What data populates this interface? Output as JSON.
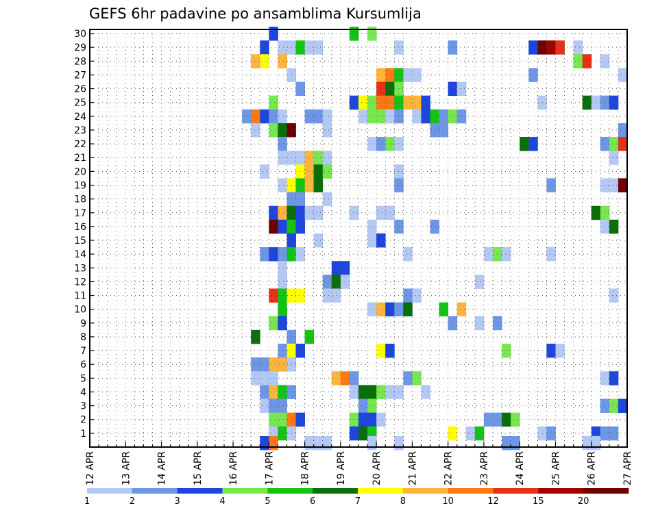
{
  "chart_data": {
    "type": "heatmap",
    "title": "GEFS 6hr padavine po ansamblima Kursumlija",
    "xlabel": "",
    "ylabel": "",
    "x_ticks": [
      "12 APR",
      "13 APR",
      "14 APR",
      "15 APR",
      "16 APR",
      "17 APR",
      "18 APR",
      "19 APR",
      "20 APR",
      "21 APR",
      "22 APR",
      "23 APR",
      "24 APR",
      "25 APR",
      "26 APR",
      "27 APR"
    ],
    "y_ticks": [
      "1",
      "2",
      "3",
      "4",
      "5",
      "6",
      "7",
      "8",
      "9",
      "10",
      "11",
      "12",
      "13",
      "14",
      "15",
      "16",
      "17",
      "18",
      "19",
      "20",
      "21",
      "22",
      "23",
      "24",
      "25",
      "26",
      "27",
      "28",
      "29",
      "30"
    ],
    "xlim": [
      0,
      60
    ],
    "ylim": [
      0,
      30.3
    ],
    "grid": true,
    "legend": "bottom",
    "color_scale": {
      "levels": [
        "1",
        "2",
        "3",
        "4",
        "5",
        "6",
        "7",
        "8",
        "10",
        "12",
        "15",
        "20"
      ],
      "colors": [
        "#b4c8f5",
        "#6e96e6",
        "#1e46dc",
        "#78e650",
        "#14c314",
        "#0a6e0a",
        "#ffff00",
        "#ffb43c",
        "#ff7814",
        "#e63214",
        "#a00000",
        "#6e0000"
      ]
    },
    "cells": [
      [
        20,
        30,
        2
      ],
      [
        29,
        30,
        4
      ],
      [
        31,
        30,
        3
      ],
      [
        19,
        29,
        2
      ],
      [
        21,
        29,
        0
      ],
      [
        22,
        29,
        0
      ],
      [
        23,
        29,
        4
      ],
      [
        24,
        29,
        0
      ],
      [
        25,
        29,
        0
      ],
      [
        34,
        29,
        0
      ],
      [
        40,
        29,
        1
      ],
      [
        49,
        29,
        2
      ],
      [
        50,
        29,
        11
      ],
      [
        51,
        29,
        10
      ],
      [
        52,
        29,
        9
      ],
      [
        54,
        29,
        0
      ],
      [
        18,
        28,
        7
      ],
      [
        19,
        28,
        6
      ],
      [
        21,
        28,
        7
      ],
      [
        54,
        28,
        3
      ],
      [
        55,
        28,
        9
      ],
      [
        57,
        28,
        0
      ],
      [
        22,
        27,
        0
      ],
      [
        32,
        27,
        7
      ],
      [
        33,
        27,
        8
      ],
      [
        34,
        27,
        4
      ],
      [
        35,
        27,
        0
      ],
      [
        36,
        27,
        0
      ],
      [
        49,
        27,
        1
      ],
      [
        59,
        27,
        0
      ],
      [
        23,
        26,
        1
      ],
      [
        32,
        26,
        9
      ],
      [
        33,
        26,
        5
      ],
      [
        34,
        26,
        3
      ],
      [
        40,
        26,
        2
      ],
      [
        41,
        26,
        0
      ],
      [
        20,
        25,
        3
      ],
      [
        29,
        25,
        2
      ],
      [
        30,
        25,
        6
      ],
      [
        31,
        25,
        3
      ],
      [
        32,
        25,
        8
      ],
      [
        33,
        25,
        8
      ],
      [
        34,
        25,
        4
      ],
      [
        35,
        25,
        7
      ],
      [
        36,
        25,
        7
      ],
      [
        37,
        25,
        2
      ],
      [
        50,
        25,
        0
      ],
      [
        55,
        25,
        5
      ],
      [
        56,
        25,
        0
      ],
      [
        57,
        25,
        1
      ],
      [
        58,
        25,
        2
      ],
      [
        17,
        24,
        1
      ],
      [
        18,
        24,
        8
      ],
      [
        19,
        24,
        2
      ],
      [
        20,
        24,
        1
      ],
      [
        21,
        24,
        0
      ],
      [
        24,
        24,
        1
      ],
      [
        25,
        24,
        1
      ],
      [
        26,
        24,
        0
      ],
      [
        30,
        24,
        0
      ],
      [
        31,
        24,
        3
      ],
      [
        32,
        24,
        3
      ],
      [
        33,
        24,
        0
      ],
      [
        34,
        24,
        1
      ],
      [
        36,
        24,
        0
      ],
      [
        37,
        24,
        2
      ],
      [
        38,
        24,
        4
      ],
      [
        39,
        24,
        1
      ],
      [
        40,
        24,
        3
      ],
      [
        41,
        24,
        1
      ],
      [
        18,
        23,
        0
      ],
      [
        20,
        23,
        3
      ],
      [
        21,
        23,
        5
      ],
      [
        22,
        23,
        11
      ],
      [
        26,
        23,
        0
      ],
      [
        38,
        23,
        1
      ],
      [
        39,
        23,
        1
      ],
      [
        59,
        23,
        1
      ],
      [
        21,
        22,
        1
      ],
      [
        31,
        22,
        0
      ],
      [
        32,
        22,
        1
      ],
      [
        33,
        22,
        3
      ],
      [
        34,
        22,
        0
      ],
      [
        48,
        22,
        5
      ],
      [
        49,
        22,
        2
      ],
      [
        57,
        22,
        1
      ],
      [
        58,
        22,
        3
      ],
      [
        59,
        22,
        9
      ],
      [
        21,
        21,
        0
      ],
      [
        22,
        21,
        0
      ],
      [
        23,
        21,
        0
      ],
      [
        24,
        21,
        7
      ],
      [
        25,
        21,
        3
      ],
      [
        26,
        21,
        0
      ],
      [
        58,
        21,
        0
      ],
      [
        19,
        20,
        0
      ],
      [
        23,
        20,
        6
      ],
      [
        24,
        20,
        7
      ],
      [
        25,
        20,
        5
      ],
      [
        26,
        20,
        3
      ],
      [
        34,
        20,
        0
      ],
      [
        21,
        19,
        0
      ],
      [
        22,
        19,
        6
      ],
      [
        23,
        19,
        4
      ],
      [
        24,
        19,
        7
      ],
      [
        25,
        19,
        5
      ],
      [
        34,
        19,
        1
      ],
      [
        51,
        19,
        1
      ],
      [
        57,
        19,
        0
      ],
      [
        58,
        19,
        0
      ],
      [
        59,
        19,
        11
      ],
      [
        22,
        18,
        1
      ],
      [
        23,
        18,
        1
      ],
      [
        26,
        18,
        0
      ],
      [
        20,
        17,
        2
      ],
      [
        21,
        17,
        7
      ],
      [
        22,
        17,
        5
      ],
      [
        23,
        17,
        2
      ],
      [
        24,
        17,
        0
      ],
      [
        25,
        17,
        0
      ],
      [
        29,
        17,
        0
      ],
      [
        32,
        17,
        0
      ],
      [
        33,
        17,
        0
      ],
      [
        56,
        17,
        5
      ],
      [
        57,
        17,
        3
      ],
      [
        20,
        16,
        11
      ],
      [
        21,
        16,
        2
      ],
      [
        22,
        16,
        4
      ],
      [
        23,
        16,
        2
      ],
      [
        31,
        16,
        0
      ],
      [
        34,
        16,
        1
      ],
      [
        38,
        16,
        1
      ],
      [
        57,
        16,
        0
      ],
      [
        58,
        16,
        5
      ],
      [
        22,
        15,
        2
      ],
      [
        25,
        15,
        0
      ],
      [
        31,
        15,
        0
      ],
      [
        32,
        15,
        2
      ],
      [
        19,
        14,
        1
      ],
      [
        20,
        14,
        2
      ],
      [
        21,
        14,
        1
      ],
      [
        22,
        14,
        4
      ],
      [
        23,
        14,
        0
      ],
      [
        35,
        14,
        0
      ],
      [
        44,
        14,
        0
      ],
      [
        45,
        14,
        3
      ],
      [
        46,
        14,
        0
      ],
      [
        51,
        14,
        0
      ],
      [
        21,
        13,
        0
      ],
      [
        27,
        13,
        2
      ],
      [
        28,
        13,
        2
      ],
      [
        21,
        12,
        0
      ],
      [
        26,
        12,
        1
      ],
      [
        27,
        12,
        5
      ],
      [
        28,
        12,
        0
      ],
      [
        43,
        12,
        0
      ],
      [
        20,
        11,
        9
      ],
      [
        21,
        11,
        4
      ],
      [
        22,
        11,
        6
      ],
      [
        23,
        11,
        6
      ],
      [
        26,
        11,
        0
      ],
      [
        27,
        11,
        0
      ],
      [
        35,
        11,
        1
      ],
      [
        36,
        11,
        0
      ],
      [
        58,
        11,
        0
      ],
      [
        21,
        10,
        4
      ],
      [
        31,
        10,
        0
      ],
      [
        32,
        10,
        7
      ],
      [
        33,
        10,
        2
      ],
      [
        34,
        10,
        1
      ],
      [
        35,
        10,
        5
      ],
      [
        39,
        10,
        4
      ],
      [
        41,
        10,
        7
      ],
      [
        20,
        9,
        3
      ],
      [
        21,
        9,
        2
      ],
      [
        40,
        9,
        1
      ],
      [
        43,
        9,
        0
      ],
      [
        45,
        9,
        1
      ],
      [
        18,
        8,
        5
      ],
      [
        22,
        8,
        1
      ],
      [
        24,
        8,
        4
      ],
      [
        21,
        7,
        1
      ],
      [
        22,
        7,
        6
      ],
      [
        23,
        7,
        2
      ],
      [
        32,
        7,
        6
      ],
      [
        33,
        7,
        2
      ],
      [
        46,
        7,
        3
      ],
      [
        51,
        7,
        2
      ],
      [
        52,
        7,
        0
      ],
      [
        18,
        6,
        1
      ],
      [
        19,
        6,
        1
      ],
      [
        20,
        6,
        7
      ],
      [
        21,
        6,
        7
      ],
      [
        22,
        6,
        0
      ],
      [
        18,
        5,
        0
      ],
      [
        19,
        5,
        0
      ],
      [
        20,
        5,
        0
      ],
      [
        27,
        5,
        7
      ],
      [
        28,
        5,
        8
      ],
      [
        29,
        5,
        1
      ],
      [
        35,
        5,
        1
      ],
      [
        36,
        5,
        3
      ],
      [
        57,
        5,
        0
      ],
      [
        58,
        5,
        2
      ],
      [
        19,
        4,
        1
      ],
      [
        20,
        4,
        7
      ],
      [
        21,
        4,
        4
      ],
      [
        22,
        4,
        1
      ],
      [
        29,
        4,
        0
      ],
      [
        30,
        4,
        5
      ],
      [
        31,
        4,
        5
      ],
      [
        32,
        4,
        3
      ],
      [
        33,
        4,
        0
      ],
      [
        34,
        4,
        0
      ],
      [
        37,
        4,
        0
      ],
      [
        19,
        3,
        0
      ],
      [
        20,
        3,
        1
      ],
      [
        21,
        3,
        1
      ],
      [
        30,
        3,
        1
      ],
      [
        31,
        3,
        3
      ],
      [
        57,
        3,
        1
      ],
      [
        58,
        3,
        3
      ],
      [
        59,
        3,
        2
      ],
      [
        20,
        2,
        3
      ],
      [
        21,
        2,
        3
      ],
      [
        22,
        2,
        8
      ],
      [
        23,
        2,
        2
      ],
      [
        29,
        2,
        3
      ],
      [
        30,
        2,
        2
      ],
      [
        31,
        2,
        2
      ],
      [
        32,
        2,
        0
      ],
      [
        44,
        2,
        1
      ],
      [
        45,
        2,
        1
      ],
      [
        46,
        2,
        5
      ],
      [
        47,
        2,
        3
      ],
      [
        20,
        1,
        0
      ],
      [
        21,
        1,
        4
      ],
      [
        22,
        1,
        0
      ],
      [
        29,
        1,
        2
      ],
      [
        30,
        1,
        5
      ],
      [
        31,
        1,
        4
      ],
      [
        40,
        1,
        6
      ],
      [
        42,
        1,
        0
      ],
      [
        43,
        1,
        4
      ],
      [
        50,
        1,
        0
      ],
      [
        51,
        1,
        1
      ],
      [
        56,
        1,
        2
      ],
      [
        57,
        1,
        1
      ],
      [
        58,
        1,
        1
      ],
      [
        19,
        0.3,
        2
      ],
      [
        20,
        0.3,
        8
      ],
      [
        24,
        0.3,
        0
      ],
      [
        25,
        0.3,
        0
      ],
      [
        26,
        0.3,
        0
      ],
      [
        31,
        0.3,
        0
      ],
      [
        34,
        0.3,
        0
      ],
      [
        46,
        0.3,
        1
      ],
      [
        47,
        0.3,
        1
      ],
      [
        55,
        0.3,
        0
      ],
      [
        56,
        0.3,
        0
      ]
    ]
  }
}
